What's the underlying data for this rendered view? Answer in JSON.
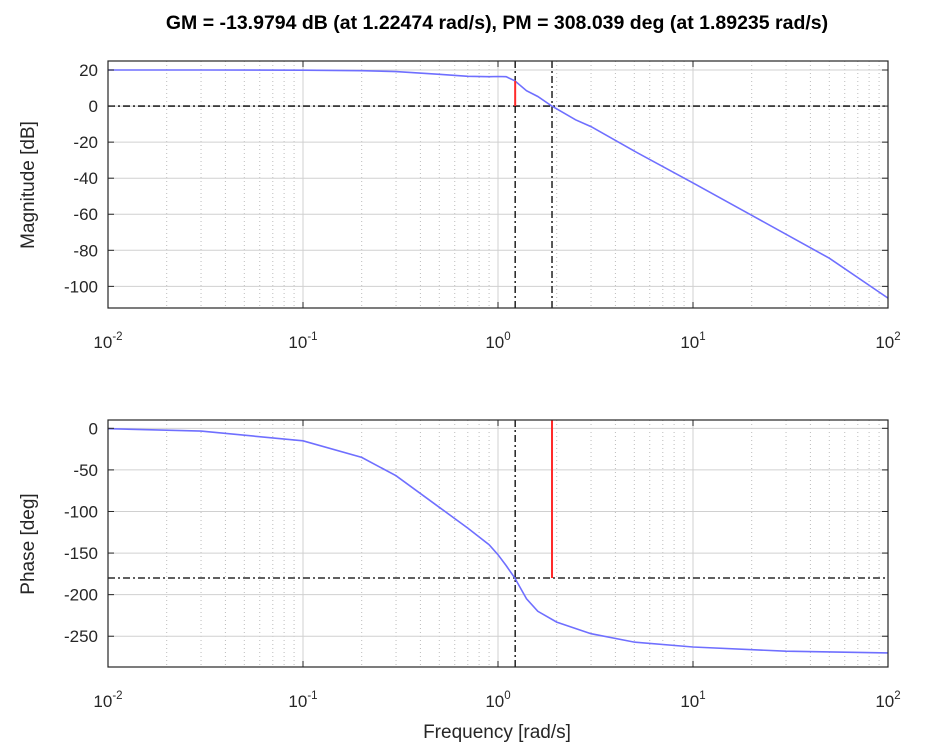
{
  "title": "GM = -13.9794 dB (at 1.22474 rad/s),   PM = 308.039 deg (at 1.89235 rad/s)",
  "colors": {
    "curve": "#6f6fff",
    "margin": "#ff2a2a",
    "reference": "#000000",
    "grid": "#d0d0d0"
  },
  "chart_data": [
    {
      "type": "line",
      "ylabel": "Magnitude [dB]",
      "xlabel": "",
      "xscale": "log",
      "xlim": [
        0.01,
        100
      ],
      "ylim": [
        -112,
        25
      ],
      "yticks": [
        20,
        0,
        -20,
        -40,
        -60,
        -80,
        -100
      ],
      "xticks": [
        {
          "base": "10",
          "exp": "-2"
        },
        {
          "base": "10",
          "exp": "-1"
        },
        {
          "base": "10",
          "exp": "0"
        },
        {
          "base": "10",
          "exp": "1"
        },
        {
          "base": "10",
          "exp": "2"
        }
      ],
      "grid": true,
      "series": [
        {
          "x": [
            0.01,
            0.03,
            0.1,
            0.2,
            0.3,
            0.5,
            0.7,
            0.9,
            1.0,
            1.1,
            1.22,
            1.4,
            1.6,
            1.89,
            2.5,
            3,
            5,
            10,
            20,
            50,
            100
          ],
          "y": [
            20.0,
            20.0,
            19.9,
            19.6,
            19.1,
            17.6,
            16.5,
            16.3,
            16.4,
            16.3,
            14.0,
            8.5,
            5.3,
            0.0,
            -7.6,
            -11.4,
            -25.0,
            -42.6,
            -60.6,
            -84.4,
            -106.5
          ]
        }
      ],
      "reference_lines": [
        {
          "orientation": "horizontal",
          "y": 0,
          "style": "dash-dot"
        },
        {
          "orientation": "vertical",
          "x": 1.22474,
          "style": "dash-dot"
        },
        {
          "orientation": "vertical",
          "x": 1.89235,
          "style": "dash-dot"
        }
      ],
      "margin_markers": [
        {
          "x": 1.22474,
          "y_from": 0,
          "y_to": 13.9794,
          "label": "gain margin"
        }
      ]
    },
    {
      "type": "line",
      "ylabel": "Phase [deg]",
      "xlabel": "Frequency [rad/s]",
      "xscale": "log",
      "xlim": [
        0.01,
        100
      ],
      "ylim": [
        -287,
        10
      ],
      "yticks": [
        0,
        -50,
        -100,
        -150,
        -200,
        -250
      ],
      "xticks": [
        {
          "base": "10",
          "exp": "-2"
        },
        {
          "base": "10",
          "exp": "-1"
        },
        {
          "base": "10",
          "exp": "0"
        },
        {
          "base": "10",
          "exp": "1"
        },
        {
          "base": "10",
          "exp": "2"
        }
      ],
      "grid": true,
      "series": [
        {
          "x": [
            0.01,
            0.03,
            0.1,
            0.2,
            0.3,
            0.5,
            0.7,
            0.9,
            1.0,
            1.1,
            1.22,
            1.4,
            1.6,
            2.0,
            3,
            5,
            10,
            30,
            100
          ],
          "y": [
            -0.5,
            -3.4,
            -15,
            -35,
            -57,
            -95,
            -120,
            -140,
            -152,
            -165,
            -180,
            -205,
            -220,
            -233,
            -247,
            -257,
            -263,
            -268,
            -270
          ]
        }
      ],
      "reference_lines": [
        {
          "orientation": "horizontal",
          "y": -180,
          "style": "dash-dot"
        },
        {
          "orientation": "vertical",
          "x": 1.22474,
          "style": "dash-dot"
        }
      ],
      "margin_markers": [
        {
          "x": 1.89235,
          "y_from": -180,
          "y_to": 128.039,
          "label": "phase margin"
        }
      ]
    }
  ]
}
